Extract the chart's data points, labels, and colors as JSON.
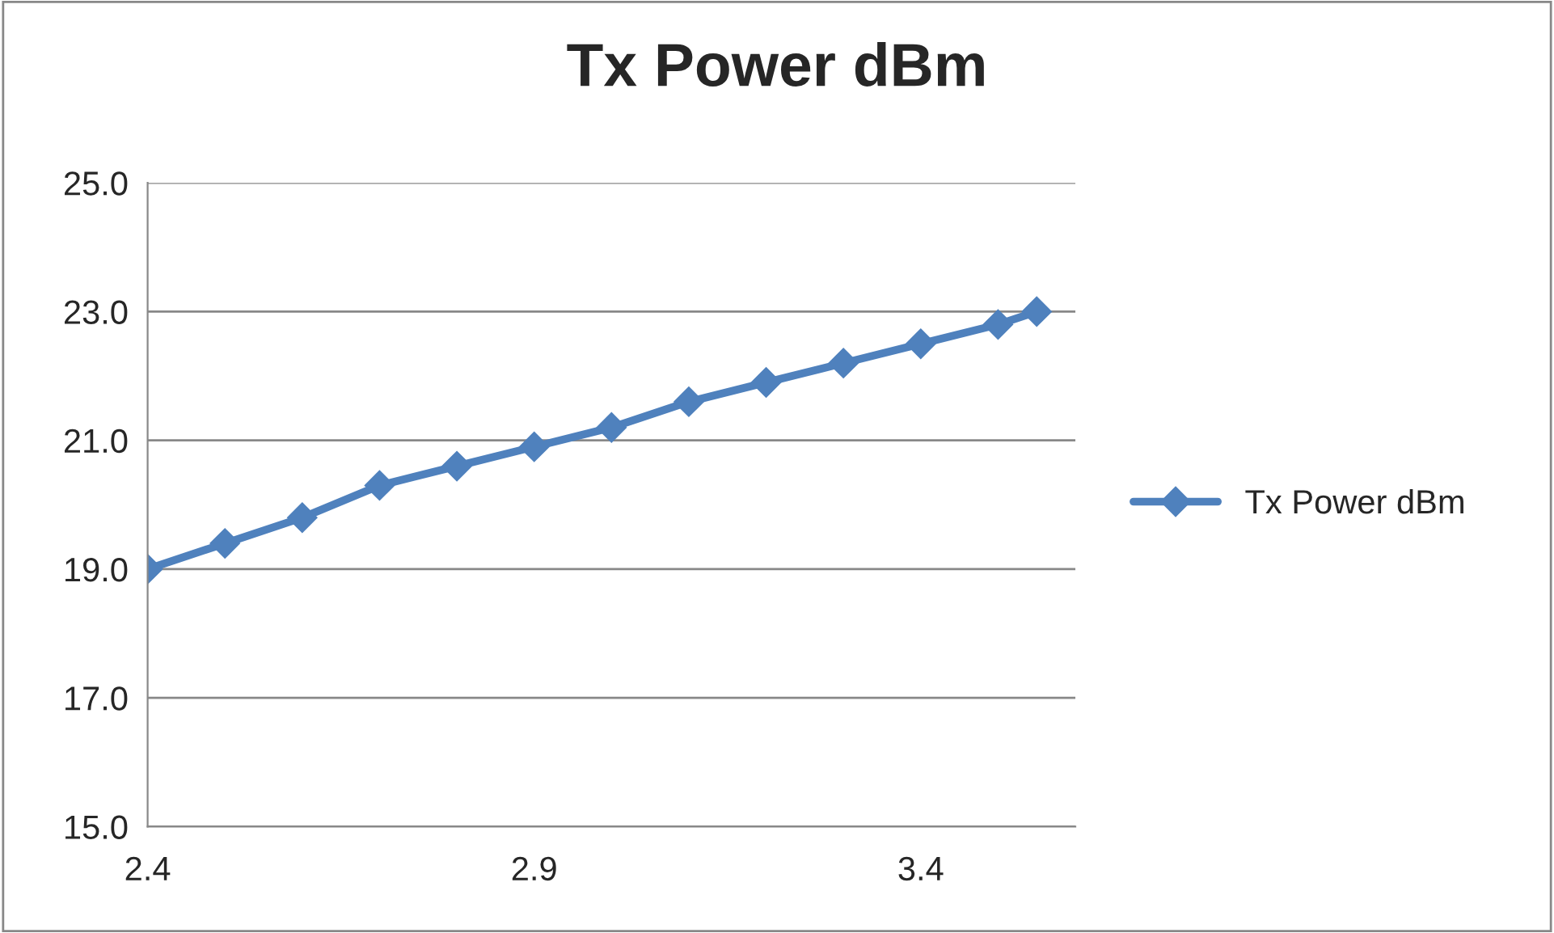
{
  "chart_data": {
    "type": "line",
    "title": "Tx Power dBm",
    "x": [
      2.4,
      2.5,
      2.6,
      2.7,
      2.8,
      2.9,
      3.0,
      3.1,
      3.2,
      3.3,
      3.4,
      3.5,
      3.55
    ],
    "series": [
      {
        "name": "Tx Power dBm",
        "color": "#4f81bd",
        "values": [
          19.0,
          19.4,
          19.8,
          20.3,
          20.6,
          20.9,
          21.2,
          21.6,
          21.9,
          22.2,
          22.5,
          22.8,
          23.0
        ]
      }
    ],
    "xlim": [
      2.4,
      3.6
    ],
    "xticks": [
      2.4,
      2.9,
      3.4
    ],
    "ylim": [
      15,
      25
    ],
    "yticks": [
      {
        "value": 15,
        "label": "15.0"
      },
      {
        "value": 17,
        "label": "17.0"
      },
      {
        "value": 19,
        "label": "19.0"
      },
      {
        "value": 21,
        "label": "21.0"
      },
      {
        "value": 23,
        "label": "23.0"
      },
      {
        "value": 25,
        "label": "25.0"
      }
    ],
    "grid": "y",
    "legend": "right",
    "marker": "diamond",
    "line_style": "solid"
  }
}
